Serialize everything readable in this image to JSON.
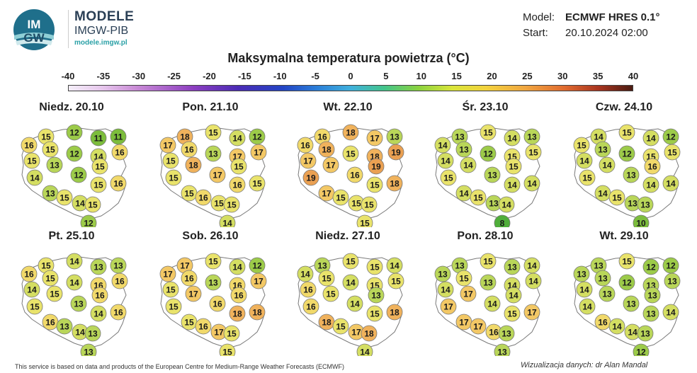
{
  "brand": {
    "logo_text_1": "IM",
    "logo_text_2": "GW",
    "name": "MODELE",
    "org": "IMGW-PIB",
    "url": "modele.imgw.pl"
  },
  "meta": {
    "model_label": "Model:",
    "model_value": "ECMWF HRES 0.1°",
    "start_label": "Start:",
    "start_value": "20.10.2024 02:00"
  },
  "title": "Maksymalna temperatura powietrza (°C)",
  "colorbar": {
    "ticks": [
      "-40",
      "-35",
      "-30",
      "-25",
      "-20",
      "-15",
      "-10",
      "-5",
      "0",
      "5",
      "10",
      "15",
      "20",
      "25",
      "30",
      "35",
      "40"
    ],
    "min": -40,
    "max": 40
  },
  "panels": [
    {
      "day": "Niedz. 20.10",
      "values": [
        15,
        12,
        11,
        11,
        16,
        15,
        12,
        14,
        16,
        15,
        13,
        15,
        14,
        12,
        15,
        16,
        13,
        15,
        14,
        15,
        12
      ]
    },
    {
      "day": "Pon. 21.10",
      "values": [
        18,
        15,
        14,
        12,
        17,
        16,
        13,
        17,
        17,
        15,
        18,
        15,
        15,
        17,
        16,
        15,
        15,
        16,
        15,
        15,
        14
      ]
    },
    {
      "day": "Wt. 22.10",
      "values": [
        16,
        18,
        17,
        13,
        16,
        18,
        15,
        18,
        19,
        17,
        17,
        19,
        19,
        16,
        15,
        18,
        17,
        15,
        15,
        15,
        15
      ]
    },
    {
      "day": "Śr. 23.10",
      "values": [
        13,
        15,
        14,
        13,
        14,
        13,
        12,
        15,
        15,
        14,
        14,
        15,
        15,
        13,
        14,
        14,
        14,
        15,
        13,
        14,
        8
      ]
    },
    {
      "day": "Czw. 24.10",
      "values": [
        14,
        15,
        14,
        12,
        15,
        13,
        12,
        15,
        15,
        14,
        14,
        16,
        15,
        13,
        14,
        14,
        14,
        15,
        13,
        13,
        10
      ]
    },
    {
      "day": "Pt. 25.10",
      "values": [
        15,
        14,
        13,
        13,
        16,
        15,
        14,
        16,
        16,
        14,
        15,
        16,
        15,
        13,
        14,
        16,
        16,
        13,
        14,
        13,
        13
      ]
    },
    {
      "day": "Sob. 26.10",
      "values": [
        17,
        15,
        14,
        12,
        17,
        16,
        13,
        16,
        17,
        15,
        17,
        16,
        15,
        16,
        18,
        18,
        15,
        16,
        17,
        15,
        15
      ]
    },
    {
      "day": "Niedz. 27.10",
      "values": [
        13,
        15,
        15,
        14,
        14,
        15,
        14,
        15,
        15,
        16,
        15,
        13,
        16,
        14,
        15,
        18,
        18,
        15,
        17,
        18,
        14
      ]
    },
    {
      "day": "Pon. 28.10",
      "values": [
        13,
        15,
        13,
        14,
        13,
        15,
        13,
        14,
        14,
        14,
        17,
        14,
        17,
        14,
        15,
        17,
        17,
        17,
        16,
        13,
        13
      ]
    },
    {
      "day": "Wt. 29.10",
      "values": [
        13,
        15,
        12,
        12,
        13,
        13,
        12,
        13,
        13,
        14,
        13,
        13,
        14,
        13,
        13,
        14,
        16,
        14,
        14,
        13,
        12
      ]
    }
  ],
  "footer": {
    "left": "This service is based on data and products of the European Centre for Medium-Range Weather Forecasts (ECMWF)",
    "right": "Wizualizacja danych: dr Alan Mandal"
  }
}
